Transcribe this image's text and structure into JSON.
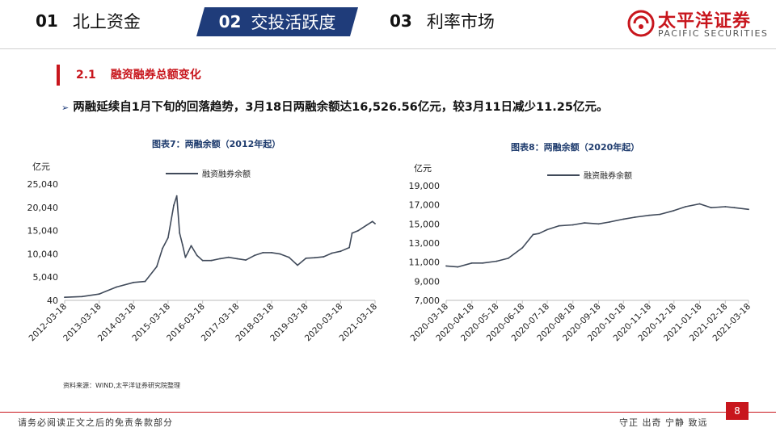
{
  "nav": {
    "items": [
      {
        "num": "01",
        "label": "北上资金"
      },
      {
        "num": "02",
        "label": "交投活跃度"
      },
      {
        "num": "03",
        "label": "利率市场"
      }
    ],
    "active_color": "#1f3c7a"
  },
  "logo": {
    "cn": "太平洋证券",
    "en": "PACIFIC SECURITIES",
    "color": "#c8161d"
  },
  "section": {
    "num": "2.1",
    "title": "融资融券总额变化"
  },
  "bullet": "两融延续自1月下旬的回落趋势，3月18日两融余额达16,526.56亿元，较3月11日减少11.25亿元。",
  "source": "资料来源：WIND,太平洋证券研究院整理",
  "footer": {
    "left": "请务必阅读正文之后的免责条款部分",
    "right": "守正  出奇  宁静  致远",
    "page": "8"
  },
  "chart_data": [
    {
      "type": "line",
      "title": "图表7：两融余额（2012年起）",
      "ylabel": "亿元",
      "legend": "融资融券余额",
      "legend_position": "top",
      "ylim": [
        40,
        25040
      ],
      "yticks": [
        "25,040",
        "20,040",
        "15,040",
        "10,040",
        "5,040",
        "40"
      ],
      "x": [
        "2012-03-18",
        "2012-09-18",
        "2013-03-18",
        "2013-09-18",
        "2014-03-18",
        "2014-07-18",
        "2014-11-18",
        "2015-01-18",
        "2015-03-18",
        "2015-05-18",
        "2015-06-18",
        "2015-07-18",
        "2015-08-18",
        "2015-09-18",
        "2015-10-18",
        "2015-11-18",
        "2016-01-18",
        "2016-03-18",
        "2016-06-18",
        "2016-09-18",
        "2016-12-18",
        "2017-03-18",
        "2017-06-18",
        "2017-09-18",
        "2017-12-18",
        "2018-03-18",
        "2018-06-18",
        "2018-09-18",
        "2018-12-18",
        "2019-03-18",
        "2019-06-18",
        "2019-09-18",
        "2019-12-18",
        "2020-03-18",
        "2020-06-18",
        "2020-07-18",
        "2020-09-18",
        "2020-12-18",
        "2021-02-18",
        "2021-03-18"
      ],
      "values": [
        700,
        850,
        1400,
        2900,
        3900,
        4100,
        7300,
        11200,
        13500,
        20500,
        22500,
        14500,
        12000,
        9300,
        10500,
        11800,
        9700,
        8600,
        8600,
        9000,
        9300,
        9000,
        8700,
        9700,
        10300,
        10300,
        10000,
        9300,
        7600,
        9100,
        9200,
        9400,
        10200,
        10600,
        11400,
        14500,
        15000,
        16200,
        17000,
        16527
      ],
      "color": "#404a5a",
      "xticks": [
        "2012-03-18",
        "2013-03-18",
        "2014-03-18",
        "2015-03-18",
        "2016-03-18",
        "2017-03-18",
        "2018-03-18",
        "2019-03-18",
        "2020-03-18",
        "2021-03-18"
      ]
    },
    {
      "type": "line",
      "title": "图表8：两融余额（2020年起）",
      "ylabel": "亿元",
      "legend": "融资融券余额",
      "legend_position": "top",
      "ylim": [
        7000,
        19000
      ],
      "yticks": [
        "19,000",
        "17,000",
        "15,000",
        "13,000",
        "11,000",
        "9,000",
        "7,000"
      ],
      "x": [
        "2020-03-18",
        "2020-04-01",
        "2020-04-18",
        "2020-05-01",
        "2020-05-18",
        "2020-06-01",
        "2020-06-18",
        "2020-07-01",
        "2020-07-08",
        "2020-07-18",
        "2020-08-01",
        "2020-08-18",
        "2020-09-01",
        "2020-09-18",
        "2020-10-01",
        "2020-10-18",
        "2020-11-01",
        "2020-11-18",
        "2020-12-01",
        "2020-12-18",
        "2021-01-01",
        "2021-01-18",
        "2021-02-01",
        "2021-02-18",
        "2021-03-01",
        "2021-03-18"
      ],
      "values": [
        10600,
        10500,
        10900,
        10900,
        11100,
        11400,
        12500,
        13900,
        14000,
        14400,
        14800,
        14900,
        15100,
        15000,
        15200,
        15500,
        15700,
        15900,
        16000,
        16400,
        16800,
        17100,
        16700,
        16800,
        16700,
        16527
      ],
      "color": "#404a5a",
      "xticks": [
        "2020-03-18",
        "2020-04-18",
        "2020-05-18",
        "2020-06-18",
        "2020-07-18",
        "2020-08-18",
        "2020-09-18",
        "2020-10-18",
        "2020-11-18",
        "2020-12-18",
        "2021-01-18",
        "2021-02-18",
        "2021-03-18"
      ]
    }
  ]
}
